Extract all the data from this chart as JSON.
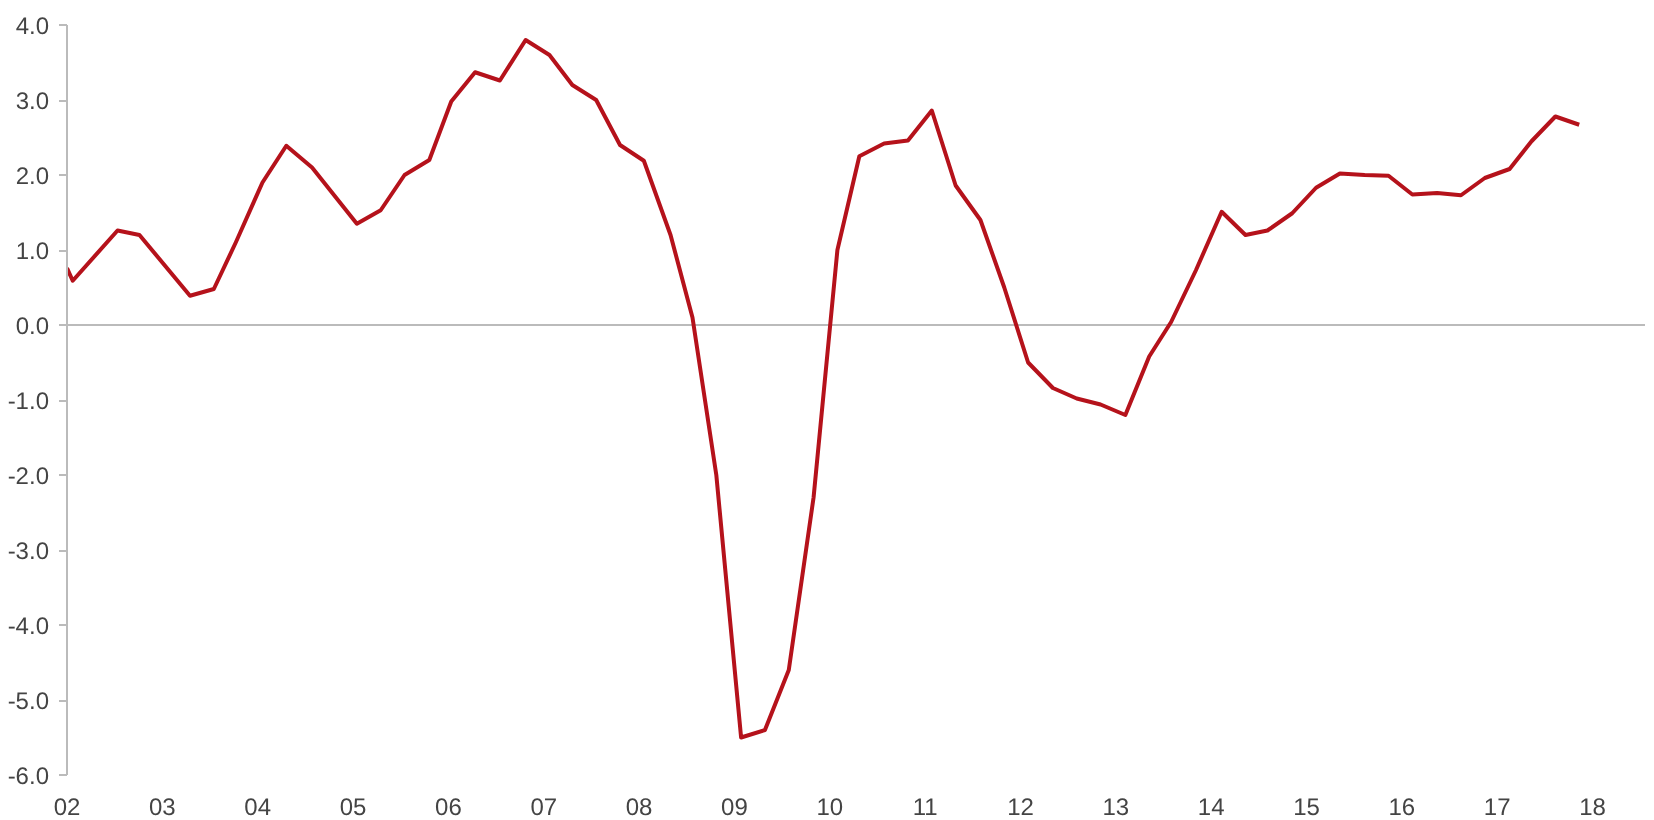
{
  "chart_data": {
    "type": "line",
    "x": [
      2002.0,
      2002.06,
      2002.53,
      2002.76,
      2003.29,
      2003.54,
      2003.77,
      2004.05,
      2004.3,
      2004.57,
      2005.04,
      2005.29,
      2005.54,
      2005.8,
      2006.03,
      2006.28,
      2006.54,
      2006.81,
      2007.06,
      2007.3,
      2007.55,
      2007.8,
      2008.05,
      2008.33,
      2008.56,
      2008.81,
      2009.07,
      2009.32,
      2009.57,
      2009.83,
      2010.08,
      2010.31,
      2010.57,
      2010.82,
      2011.07,
      2011.32,
      2011.58,
      2011.83,
      2012.08,
      2012.34,
      2012.59,
      2012.84,
      2013.1,
      2013.35,
      2013.58,
      2013.84,
      2014.11,
      2014.36,
      2014.59,
      2014.85,
      2015.1,
      2015.35,
      2015.61,
      2015.86,
      2016.11,
      2016.37,
      2016.62,
      2016.87,
      2017.13,
      2017.36,
      2017.61,
      2017.86
    ],
    "series": [
      {
        "color": "#b5121b",
        "values": [
          0.76,
          0.59,
          1.26,
          1.2,
          0.39,
          0.48,
          1.1,
          1.9,
          2.39,
          2.1,
          1.35,
          1.53,
          2.0,
          2.2,
          2.98,
          3.37,
          3.26,
          3.8,
          3.6,
          3.2,
          3.0,
          2.4,
          2.19,
          1.2,
          0.1,
          -2.0,
          -5.5,
          -5.4,
          -4.6,
          -2.3,
          1.0,
          2.25,
          2.42,
          2.46,
          2.86,
          1.86,
          1.4,
          0.5,
          -0.5,
          -0.84,
          -0.98,
          -1.06,
          -1.2,
          -0.42,
          0.04,
          0.73,
          1.51,
          1.2,
          1.26,
          1.49,
          1.83,
          2.02,
          2.0,
          1.99,
          1.74,
          1.76,
          1.73,
          1.96,
          2.08,
          2.45,
          2.78,
          2.67
        ]
      }
    ],
    "xlim": [
      2002,
      2018.55
    ],
    "ylim": [
      -6.0,
      4.0
    ],
    "xticks": [
      {
        "value": 2002,
        "label": "02"
      },
      {
        "value": 2003,
        "label": "03"
      },
      {
        "value": 2004,
        "label": "04"
      },
      {
        "value": 2005,
        "label": "05"
      },
      {
        "value": 2006,
        "label": "06"
      },
      {
        "value": 2007,
        "label": "07"
      },
      {
        "value": 2008,
        "label": "08"
      },
      {
        "value": 2009,
        "label": "09"
      },
      {
        "value": 2010,
        "label": "10"
      },
      {
        "value": 2011,
        "label": "11"
      },
      {
        "value": 2012,
        "label": "12"
      },
      {
        "value": 2013,
        "label": "13"
      },
      {
        "value": 2014,
        "label": "14"
      },
      {
        "value": 2015,
        "label": "15"
      },
      {
        "value": 2016,
        "label": "16"
      },
      {
        "value": 2017,
        "label": "17"
      },
      {
        "value": 2018,
        "label": "18"
      }
    ],
    "yticks": [
      {
        "value": 4,
        "label": "4.0"
      },
      {
        "value": 3,
        "label": "3.0"
      },
      {
        "value": 2,
        "label": "2.0"
      },
      {
        "value": 1,
        "label": "1.0"
      },
      {
        "value": 0,
        "label": "0.0"
      },
      {
        "value": -1,
        "label": "-1.0"
      },
      {
        "value": -2,
        "label": "-2.0"
      },
      {
        "value": -3,
        "label": "-3.0"
      },
      {
        "value": -4,
        "label": "-4.0"
      },
      {
        "value": -5,
        "label": "-5.0"
      },
      {
        "value": -6,
        "label": "-6.0"
      }
    ],
    "ref_lines": [
      {
        "axis": "y",
        "value": 0,
        "color": "#bbbbbb"
      }
    ],
    "grid": false
  }
}
